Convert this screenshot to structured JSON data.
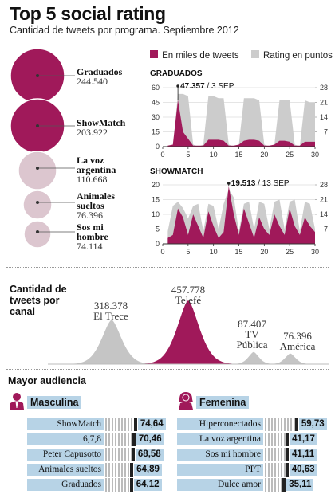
{
  "title": "Top 5 social rating",
  "subtitle": "Cantidad de tweets por programa. Septiembre 2012",
  "colors": {
    "magenta": "#a0195a",
    "pink_light": "#dcc6cf",
    "gray": "#cccccc",
    "blue": "#b7d3e6"
  },
  "bubbles": [
    {
      "name": "Graduados",
      "value": "244.540",
      "color": "#a0195a"
    },
    {
      "name": "ShowMatch",
      "value": "203.922",
      "color": "#a0195a"
    },
    {
      "name": "La voz argentina",
      "name_lines": [
        "La voz",
        "argentina"
      ],
      "value": "110.668",
      "color": "#dcc6cf"
    },
    {
      "name": "Animales sueltos",
      "name_lines": [
        "Animales",
        "sueltos"
      ],
      "value": "76.396",
      "color": "#dcc6cf"
    },
    {
      "name": "Sos mi hombre",
      "name_lines": [
        "Sos mi",
        "hombre"
      ],
      "value": "74.114",
      "color": "#dcc6cf"
    }
  ],
  "legend": {
    "tweets": "En miles de tweets",
    "rating": "Rating en puntos"
  },
  "chart_data": [
    {
      "type": "area",
      "title": "GRADUADOS",
      "annotation": {
        "value": "47.357",
        "date": "3 SEP",
        "x": 3
      },
      "x_ticks": [
        0,
        5,
        10,
        15,
        20,
        25,
        30
      ],
      "y_left_ticks": [
        0,
        15,
        30,
        45,
        60
      ],
      "y_right_ticks": [
        7,
        14,
        21,
        28
      ],
      "ylim_left": [
        0,
        60
      ],
      "ylim_right": [
        0,
        28
      ],
      "x": [
        1,
        2,
        3,
        4,
        5,
        6,
        7,
        8,
        9,
        10,
        11,
        12,
        13,
        14,
        15,
        16,
        17,
        18,
        19,
        20,
        21,
        22,
        23,
        24,
        25,
        26,
        27,
        28,
        29,
        30
      ],
      "series": [
        {
          "name": "En miles de tweets",
          "axis": "left",
          "values": [
            1,
            2,
            47.357,
            15,
            8,
            1,
            1,
            1,
            7,
            7,
            7,
            6,
            1,
            1,
            2,
            6,
            7,
            7,
            6,
            1,
            1,
            2,
            6,
            6,
            5,
            1,
            1,
            5,
            5,
            5
          ]
        },
        {
          "name": "Rating en puntos",
          "axis": "right",
          "values": [
            0,
            0,
            25,
            25,
            24,
            1,
            0,
            1,
            24,
            24,
            23,
            23,
            1,
            0,
            1,
            23,
            23,
            23,
            22,
            1,
            0,
            1,
            22,
            22,
            22,
            1,
            0,
            22,
            21,
            21
          ]
        }
      ]
    },
    {
      "type": "area",
      "title": "SHOWMATCH",
      "annotation": {
        "value": "19.513",
        "date": "13 SEP",
        "x": 13
      },
      "x_ticks": [
        0,
        5,
        10,
        15,
        20,
        25,
        30
      ],
      "y_left_ticks": [
        0,
        5,
        10,
        15,
        20
      ],
      "y_right_ticks": [
        7,
        14,
        21,
        28
      ],
      "ylim_left": [
        0,
        20
      ],
      "ylim_right": [
        0,
        28
      ],
      "x": [
        1,
        2,
        3,
        4,
        5,
        6,
        7,
        8,
        9,
        10,
        11,
        12,
        13,
        14,
        15,
        16,
        17,
        18,
        19,
        20,
        21,
        22,
        23,
        24,
        25,
        26,
        27,
        28,
        29,
        30
      ],
      "series": [
        {
          "name": "En miles de tweets",
          "axis": "left",
          "values": [
            2,
            3,
            12,
            9,
            3,
            10,
            6,
            2,
            11,
            6,
            2,
            4,
            19.513,
            10,
            3,
            12,
            7,
            2,
            9,
            5,
            3,
            10,
            6,
            3,
            12,
            6,
            3,
            9,
            6,
            4
          ]
        },
        {
          "name": "Rating en puntos",
          "axis": "right",
          "values": [
            6,
            18,
            20,
            17,
            12,
            18,
            19,
            6,
            19,
            18,
            7,
            19,
            26,
            22,
            6,
            19,
            20,
            7,
            20,
            19,
            7,
            20,
            21,
            7,
            20,
            21,
            6,
            20,
            19,
            7
          ]
        }
      ]
    },
    {
      "type": "area",
      "title": "Cantidad de tweets por canal",
      "categories": [
        "El Trece",
        "Telefé",
        "TV Pública",
        "América"
      ],
      "values": [
        318378,
        457778,
        87407,
        76396
      ],
      "value_labels": [
        "318.378",
        "457.778",
        "87.407",
        "76.396"
      ],
      "category_lines": [
        [
          "El Trece"
        ],
        [
          "Telefé"
        ],
        [
          "TV",
          "Pública"
        ],
        [
          "América"
        ]
      ],
      "colors": [
        "#c5c5c5",
        "#a0195a",
        "#c5c5c5",
        "#c5c5c5"
      ]
    },
    {
      "type": "bar",
      "title": "Mayor audiencia",
      "groups": [
        {
          "name": "Masculina",
          "categories": [
            "ShowMatch",
            "6,7,8",
            "Peter Capusotto",
            "Animales sueltos",
            "Graduados"
          ],
          "values": [
            74.64,
            70.46,
            68.58,
            64.89,
            64.12
          ],
          "labels": [
            "74,64",
            "70,46",
            "68,58",
            "64,89",
            "64,12"
          ]
        },
        {
          "name": "Femenina",
          "categories": [
            "Hiperconectados",
            "La voz argentina",
            "Sos mi hombre",
            "PPT",
            "Dulce amor"
          ],
          "values": [
            59.73,
            41.17,
            41.11,
            40.63,
            35.11
          ],
          "labels": [
            "59,73",
            "41,17",
            "41,11",
            "40,63",
            "35,11"
          ]
        }
      ]
    }
  ]
}
